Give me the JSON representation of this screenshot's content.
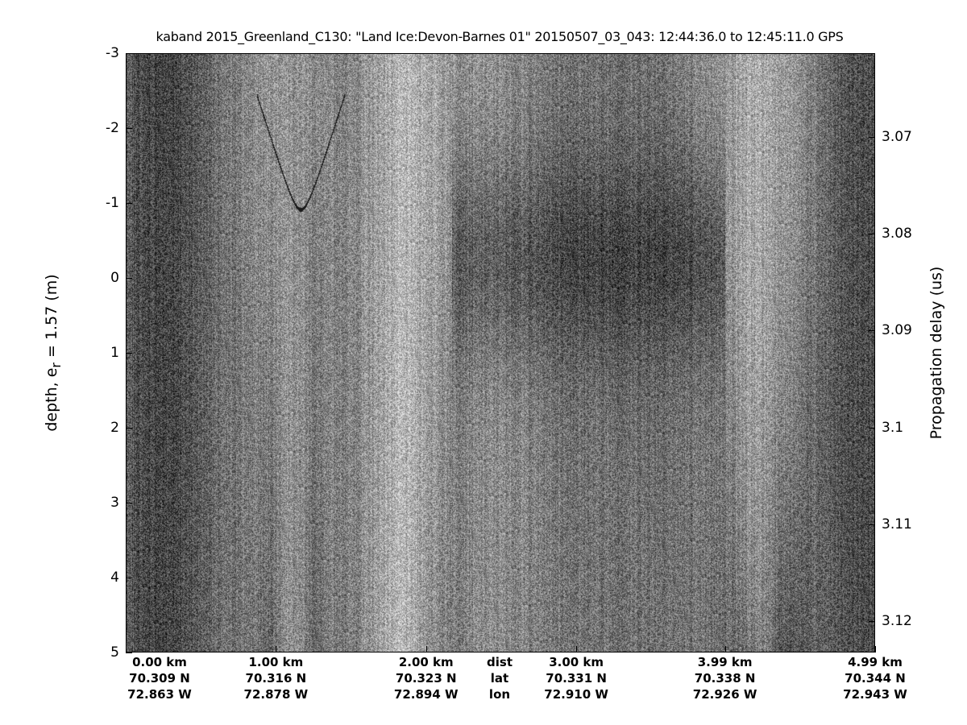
{
  "chart_data": {
    "type": "heatmap",
    "title": "kaband 2015_Greenland_C130: \"Land Ice:Devon-Barnes 01\"  20150507_03_043: 12:44:36.0 to 12:45:11.0 GPS",
    "colormap": "grayscale",
    "ylabel_left": "depth, e",
    "ylabel_left_sub": "r",
    "ylabel_left_suffix": " = 1.57 (m)",
    "ylim_left": [
      -3,
      5
    ],
    "yticks_left": [
      "-3",
      "-2",
      "-1",
      "0",
      "1",
      "2",
      "3",
      "4",
      "5"
    ],
    "ylabel_right": "Propagation delay (us)",
    "yticks_right": [
      "3.07",
      "3.08",
      "3.09",
      "3.1",
      "3.11",
      "3.12"
    ],
    "ylim_right": [
      3.0614,
      3.1232
    ],
    "xlim_km": [
      0,
      4.99
    ],
    "x_row_labels": [
      "dist",
      "lat",
      "lon"
    ],
    "x_ticks": [
      {
        "km": 0.0,
        "dist": "0.00 km",
        "lat": "70.309 N",
        "lon": "72.863 W"
      },
      {
        "km": 1.0,
        "dist": "1.00 km",
        "lat": "70.316 N",
        "lon": "72.878 W"
      },
      {
        "km": 2.0,
        "dist": "2.00 km",
        "lat": "70.323 N",
        "lon": "72.894 W"
      },
      {
        "km": 3.0,
        "dist": "3.00 km",
        "lat": "70.331 N",
        "lon": "72.910 W"
      },
      {
        "km": 3.99,
        "dist": "3.99 km",
        "lat": "70.338 N",
        "lon": "72.926 W"
      },
      {
        "km": 4.99,
        "dist": "4.99 km",
        "lat": "70.344 N",
        "lon": "72.943 W"
      }
    ]
  }
}
